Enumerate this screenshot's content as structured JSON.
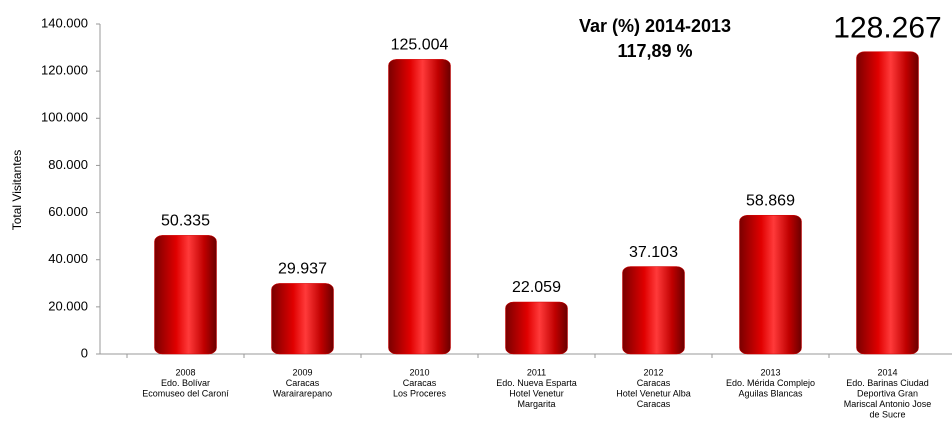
{
  "chart_data": {
    "type": "bar",
    "y_label": "Total Visitantes",
    "annotations": [
      "Var (%) 2014-2013",
      "117,89 %"
    ],
    "categories": [
      [
        "2008",
        "Edo. Bolívar",
        "Ecomuseo del Caroní"
      ],
      [
        "2009",
        "Caracas",
        "Warairarepano"
      ],
      [
        "2010",
        "Caracas",
        "Los Proceres"
      ],
      [
        "2011",
        "Edo. Nueva Esparta",
        "Hotel Venetur",
        "Margarita"
      ],
      [
        "2012",
        "Caracas",
        "Hotel Venetur Alba",
        "Caracas"
      ],
      [
        "2013",
        "Edo. Mérida Complejo",
        "Aguilas Blancas"
      ],
      [
        "2014",
        "Edo. Barinas Ciudad",
        "Deportiva Gran",
        "Mariscal Antonio Jose",
        "de Sucre"
      ]
    ],
    "values": [
      50335,
      29937,
      125004,
      22059,
      37103,
      58869,
      128267
    ],
    "value_labels": [
      "50.335",
      "29.937",
      "125.004",
      "22.059",
      "37.103",
      "58.869",
      "128.267"
    ],
    "color": "#d40000",
    "ylim": [
      0,
      140000
    ],
    "yticks": [
      0,
      {
        "value": 20000,
        "label": "20.000"
      },
      {
        "value": 40000,
        "label": "40.000"
      },
      {
        "value": 60000,
        "label": "60.000"
      },
      {
        "value": 80000,
        "label": "80.000"
      },
      {
        "value": 100000,
        "label": "100.000"
      },
      {
        "value": 120000,
        "label": "120.000"
      },
      {
        "value": 140000,
        "label": "140.000"
      }
    ],
    "grid": false
  }
}
